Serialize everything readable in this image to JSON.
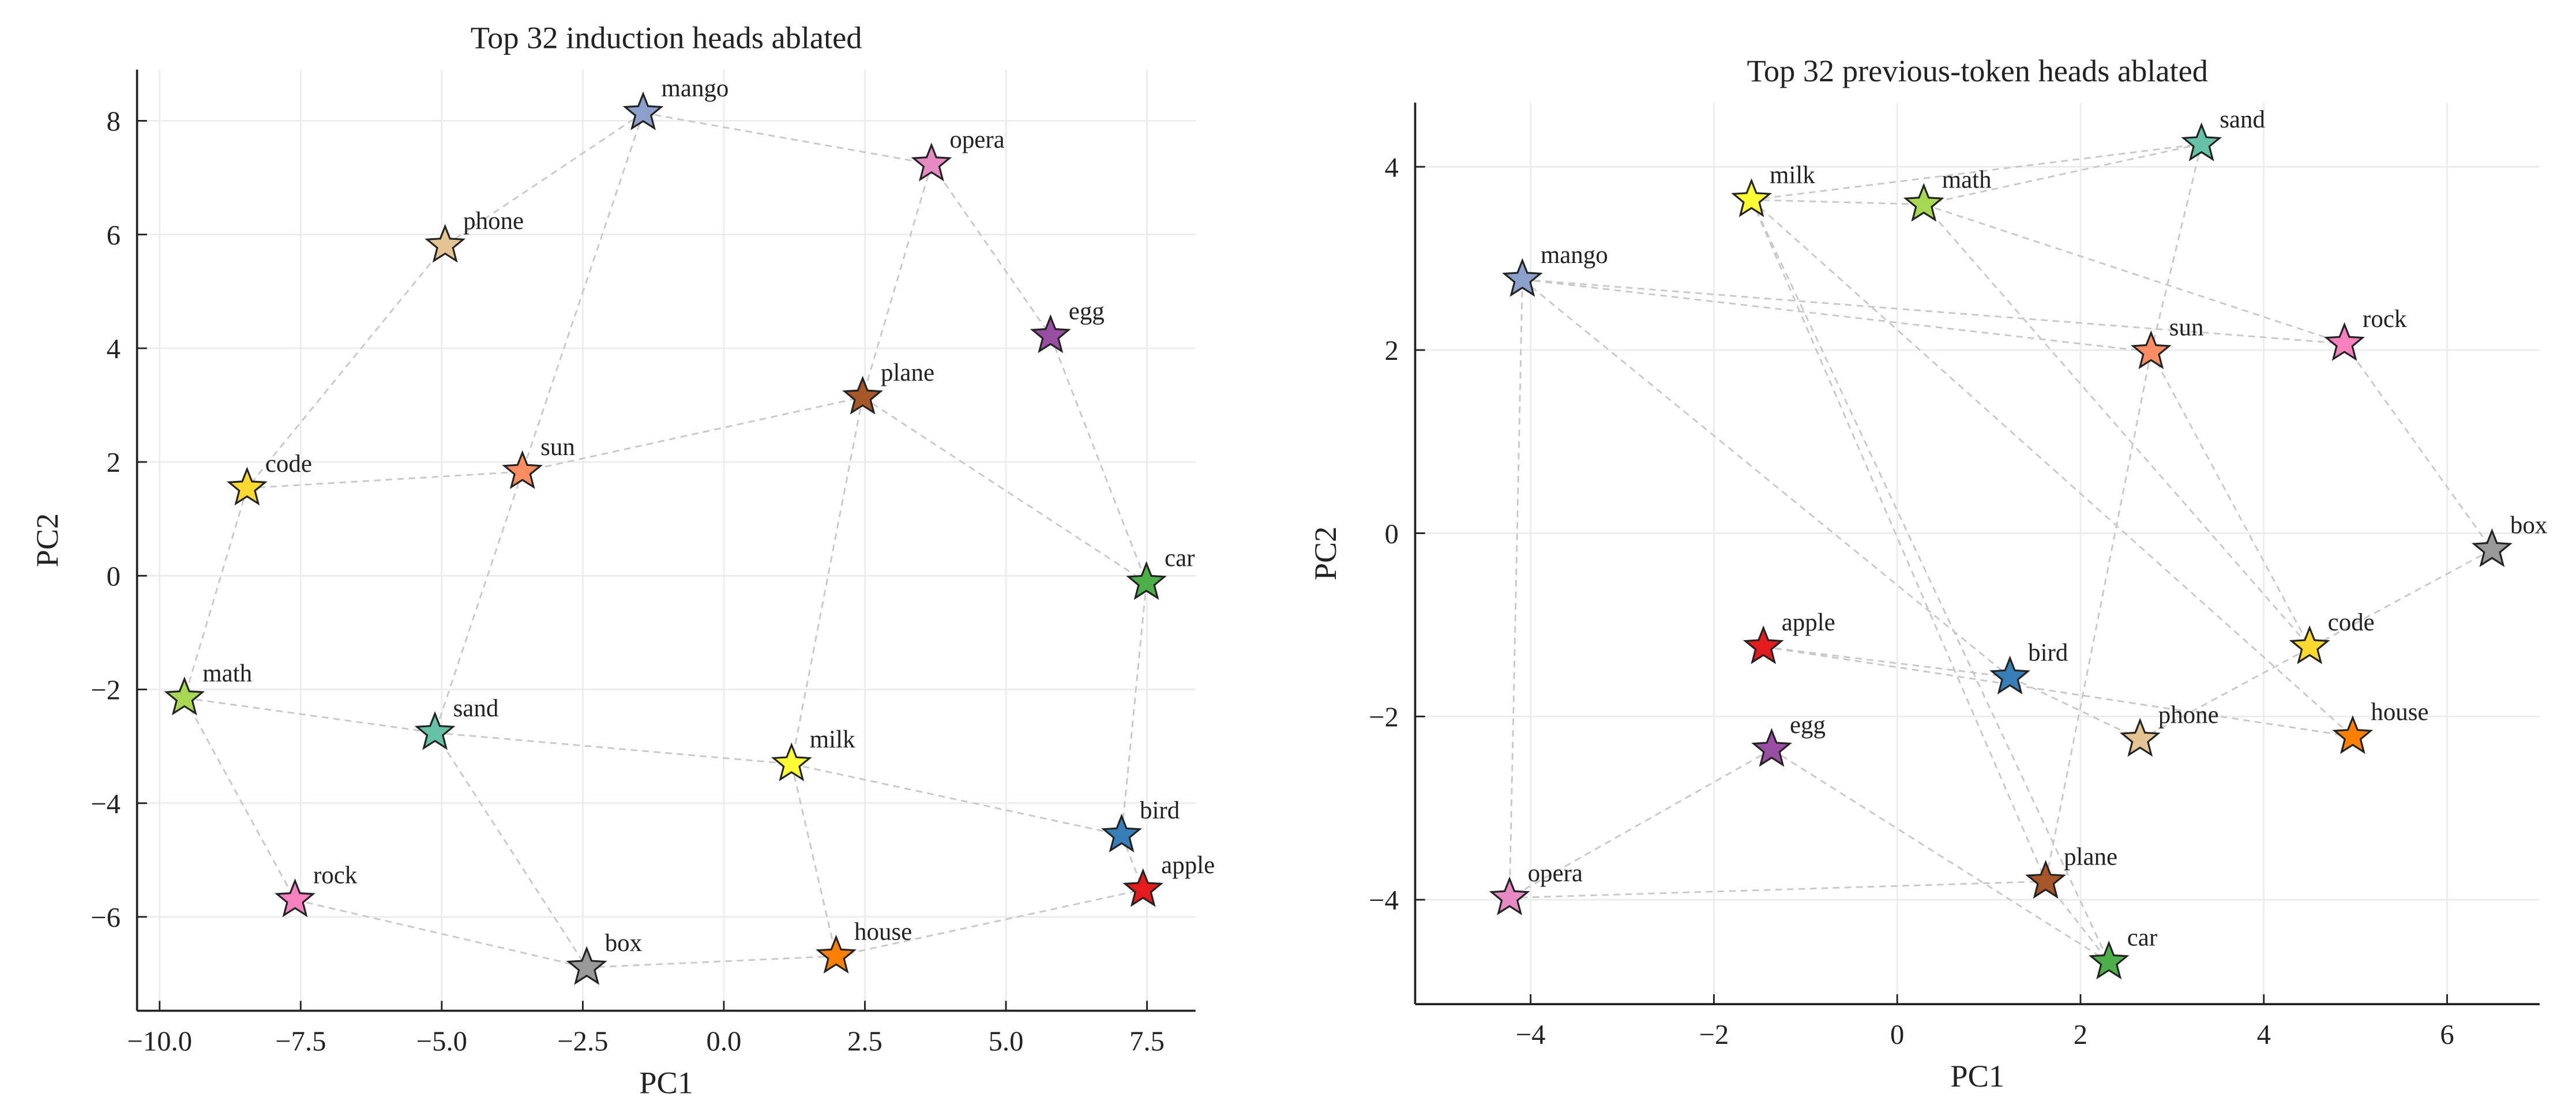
{
  "chart_data": [
    {
      "type": "scatter",
      "title": "Top 32 induction heads ablated",
      "xlabel": "PC1",
      "ylabel": "PC2",
      "labels": [
        "mango",
        "opera",
        "phone",
        "egg",
        "plane",
        "code",
        "sun",
        "car",
        "math",
        "sand",
        "milk",
        "bird",
        "apple",
        "rock",
        "box",
        "house"
      ],
      "x": [
        -1.43,
        3.68,
        -4.94,
        5.79,
        2.46,
        -8.45,
        -3.57,
        7.49,
        -9.56,
        -5.12,
        1.2,
        7.05,
        7.43,
        -7.6,
        -2.43,
        1.99
      ],
      "y": [
        8.14,
        7.24,
        5.81,
        4.22,
        3.14,
        1.54,
        1.83,
        -0.12,
        -2.15,
        -2.76,
        -3.31,
        -4.56,
        -5.52,
        -5.7,
        -6.89,
        -6.69
      ],
      "colors": [
        "#8da0cb",
        "#e78ac3",
        "#e5c494",
        "#984ea3",
        "#a65628",
        "#ffd92f",
        "#fc8d62",
        "#4daf4a",
        "#a6d854",
        "#66c2a5",
        "#ffff33",
        "#377eb8",
        "#e41a1c",
        "#f781bf",
        "#999999",
        "#ff7f00"
      ],
      "xlim": [
        -10.4,
        8.36
      ],
      "ylim": [
        -7.65,
        8.9
      ],
      "xticks": [
        {
          "value": -10,
          "label": "−10.0"
        },
        {
          "value": -7.5,
          "label": "−7.5"
        },
        {
          "value": -5,
          "label": "−5.0"
        },
        {
          "value": -2.5,
          "label": "−2.5"
        },
        {
          "value": 0,
          "label": "0.0"
        },
        2.5,
        {
          "value": 5,
          "label": "5.0"
        },
        7.5
      ],
      "yticks": [
        {
          "value": -6,
          "label": "−6"
        },
        {
          "value": -4,
          "label": "−4"
        },
        {
          "value": -2,
          "label": "−2"
        },
        0,
        2,
        4,
        6,
        8
      ],
      "grid": true
    },
    {
      "type": "scatter",
      "title": "Top 32 previous-token heads ablated",
      "xlabel": "PC1",
      "ylabel": "PC2",
      "labels": [
        "sand",
        "milk",
        "math",
        "mango",
        "sun",
        "rock",
        "box",
        "apple",
        "code",
        "bird",
        "phone",
        "house",
        "egg",
        "opera",
        "plane",
        "car"
      ],
      "x": [
        3.32,
        -1.59,
        0.29,
        -4.09,
        2.77,
        4.88,
        6.49,
        -1.46,
        4.5,
        1.23,
        2.65,
        4.97,
        -1.37,
        -4.23,
        1.62,
        2.31
      ],
      "y": [
        4.25,
        3.64,
        3.59,
        2.77,
        1.98,
        2.07,
        -0.18,
        -1.24,
        -1.24,
        -1.57,
        -2.25,
        -2.22,
        -2.36,
        -3.98,
        -3.8,
        -4.68
      ],
      "colors": [
        "#66c2a5",
        "#ffff33",
        "#a6d854",
        "#8da0cb",
        "#fc8d62",
        "#f781bf",
        "#999999",
        "#e41a1c",
        "#ffd92f",
        "#377eb8",
        "#e5c494",
        "#ff7f00",
        "#984ea3",
        "#e78ac3",
        "#a65628",
        "#4daf4a"
      ],
      "xlim": [
        -5.26,
        7.01
      ],
      "ylim": [
        -5.14,
        4.7
      ],
      "xticks": [
        {
          "value": -4,
          "label": "−4"
        },
        {
          "value": -2,
          "label": "−2"
        },
        0,
        2,
        4,
        6
      ],
      "yticks": [
        {
          "value": -4,
          "label": "−4"
        },
        {
          "value": -2,
          "label": "−2"
        },
        0,
        2,
        4
      ],
      "grid": true
    }
  ]
}
